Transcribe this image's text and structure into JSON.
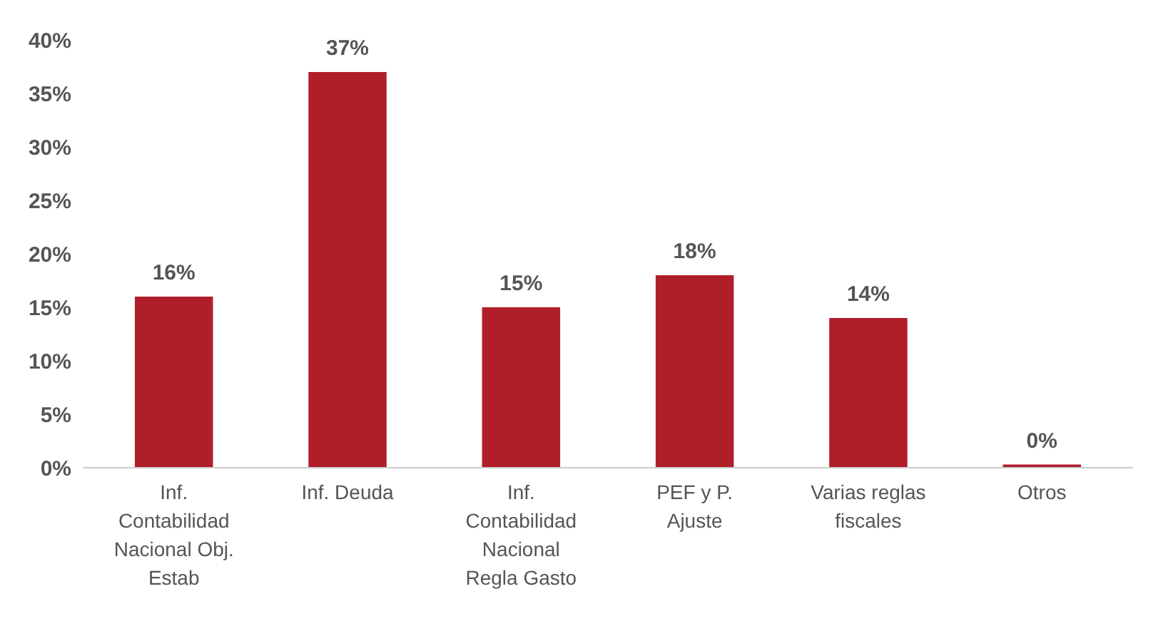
{
  "chart_data": {
    "type": "bar",
    "categories": [
      "Inf. Contabilidad Nacional Obj. Estab",
      "Inf. Deuda",
      "Inf. Contabilidad Nacional Regla Gasto",
      "PEF y P. Ajuste",
      "Varias reglas fiscales",
      "Otros"
    ],
    "values": [
      16,
      37,
      15,
      18,
      14,
      0.3
    ],
    "value_labels": [
      "16%",
      "37%",
      "15%",
      "18%",
      "14%",
      "0%"
    ],
    "color": "#b01e2a",
    "ylim": [
      0,
      40
    ],
    "yticks": [
      {
        "value": 0,
        "label": "0%"
      },
      {
        "value": 5,
        "label": "5%"
      },
      {
        "value": 10,
        "label": "10%"
      },
      {
        "value": 15,
        "label": "15%"
      },
      {
        "value": 20,
        "label": "20%"
      },
      {
        "value": 25,
        "label": "25%"
      },
      {
        "value": 30,
        "label": "30%"
      },
      {
        "value": 35,
        "label": "35%"
      },
      {
        "value": 40,
        "label": "40%"
      }
    ],
    "grid": false
  }
}
